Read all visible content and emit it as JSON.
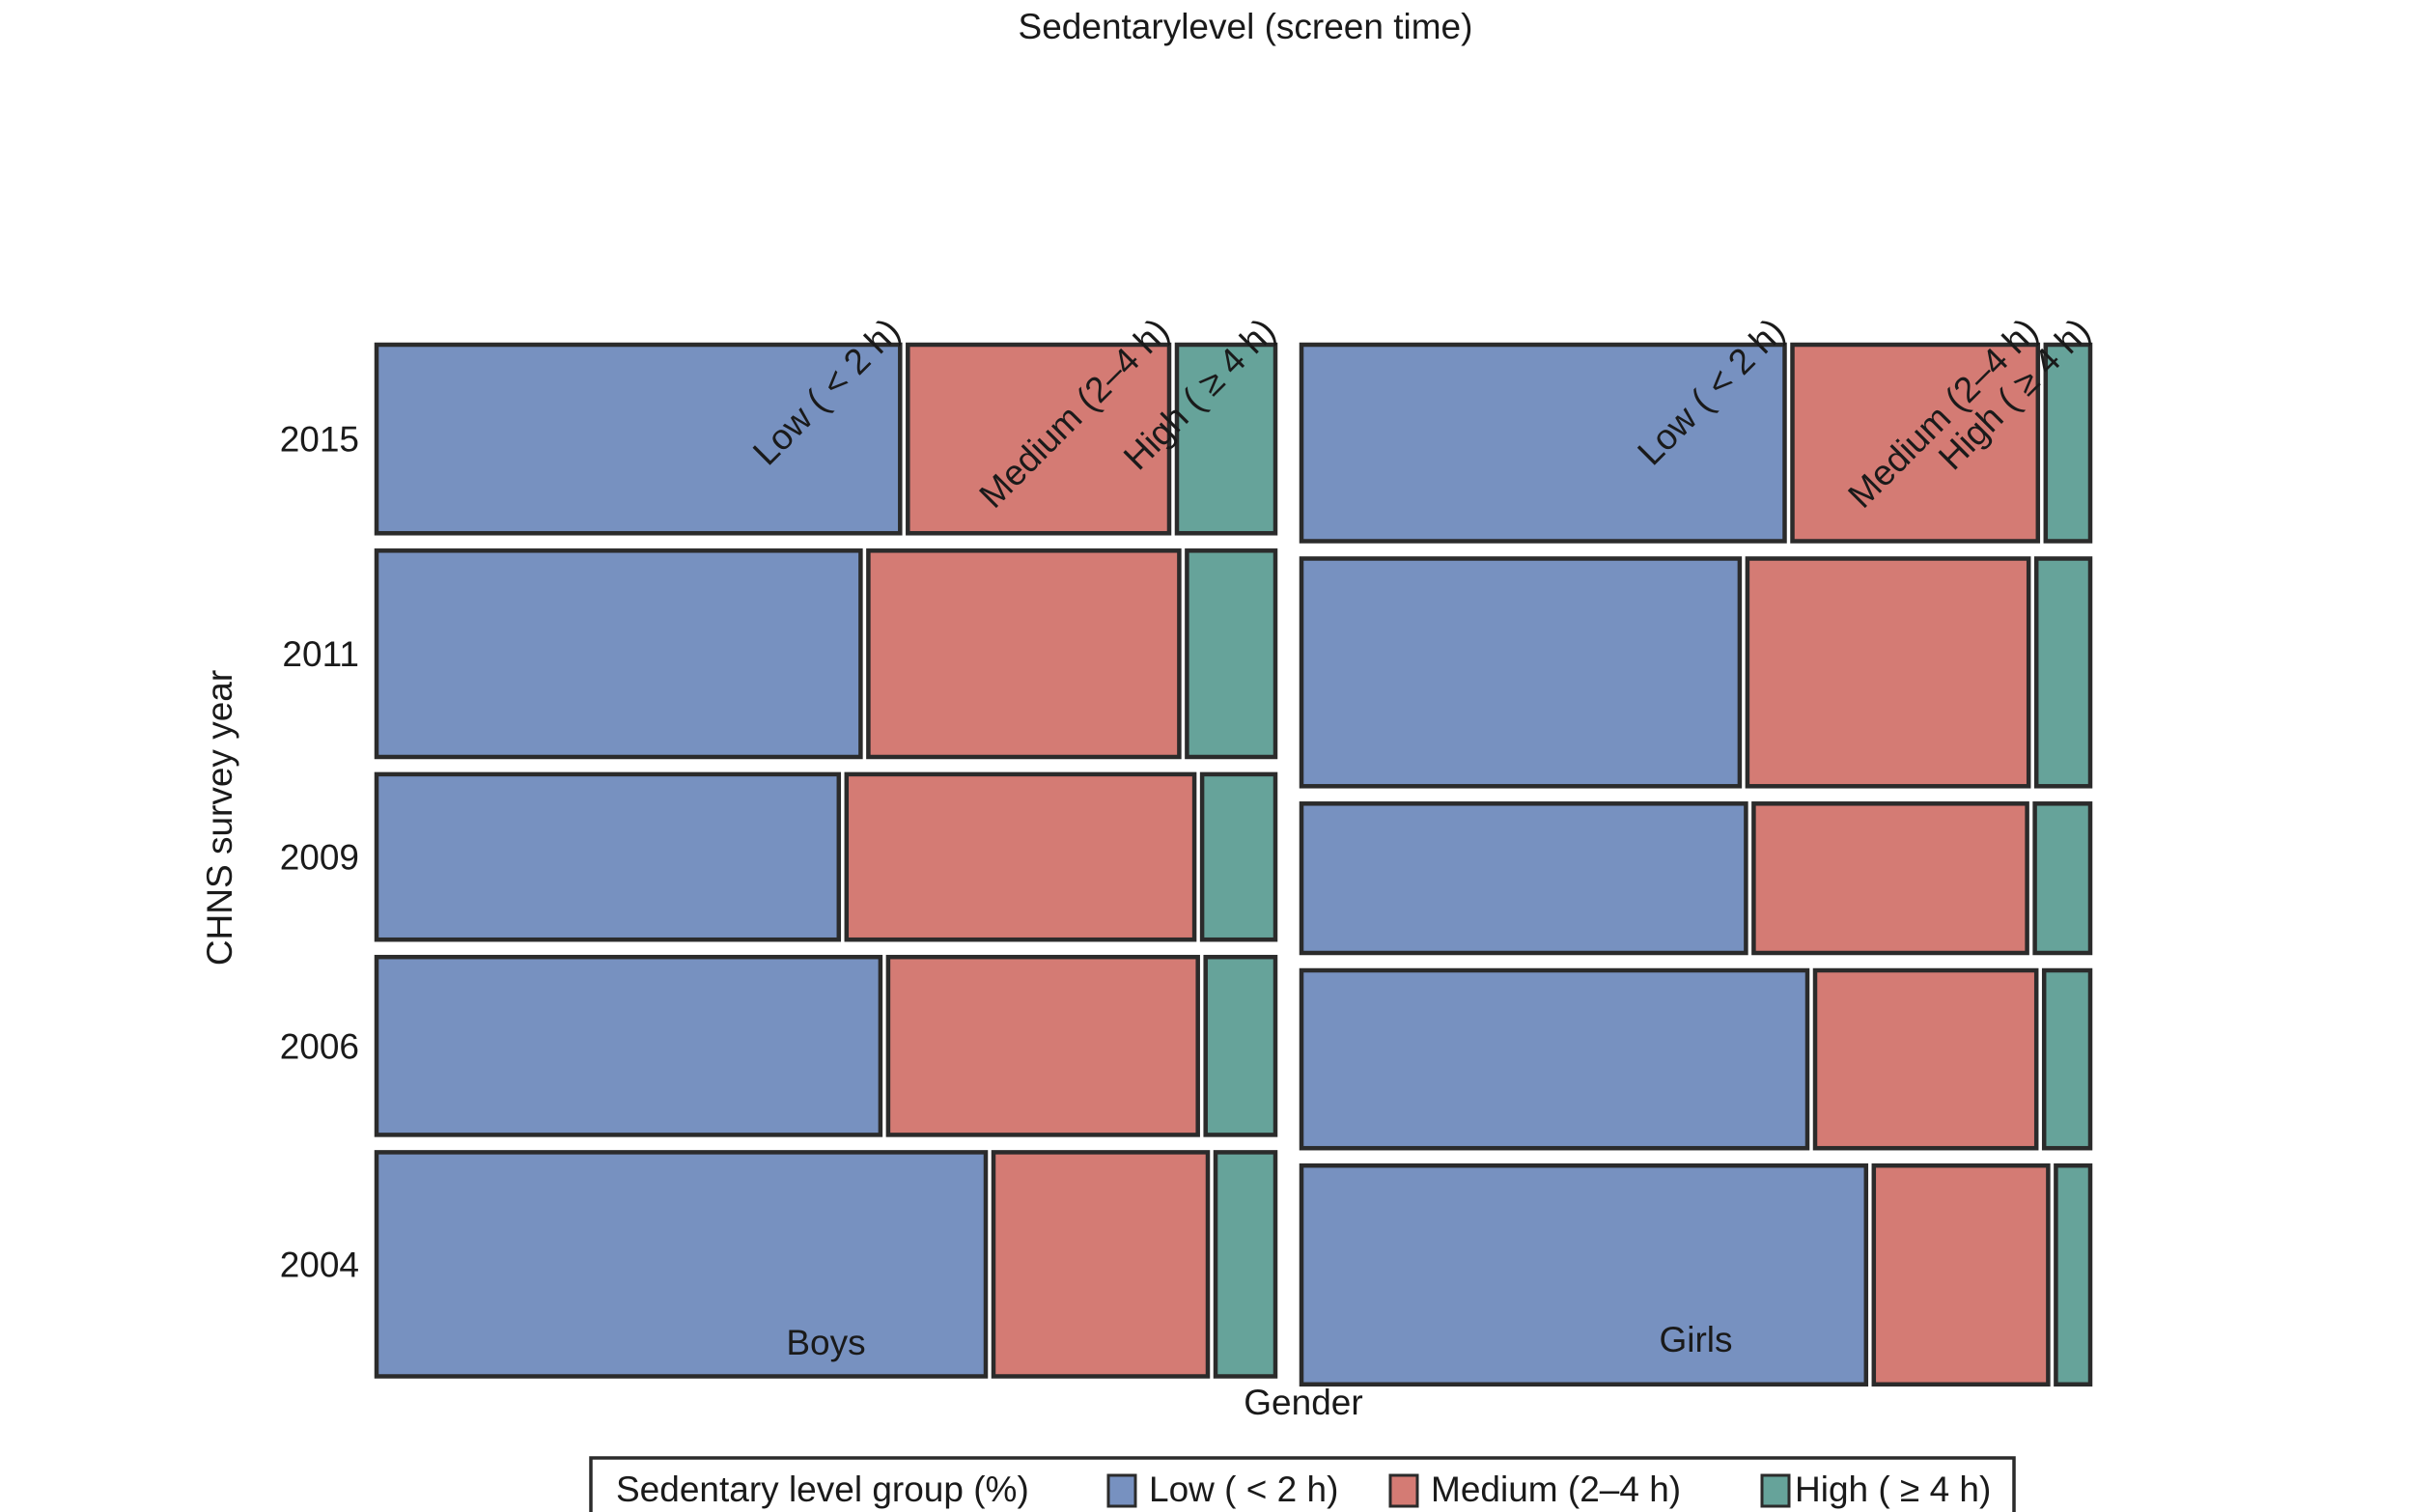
{
  "chart_data": {
    "type": "mosaic",
    "title": "Sedentarylevel (screen time)",
    "xlabel": "Gender",
    "ylabel": "CHNS survey year",
    "genders": [
      "Boys",
      "Girls"
    ],
    "years": [
      "2015",
      "2011",
      "2009",
      "2006",
      "2004"
    ],
    "levels": [
      "Low ( < 2 h)",
      "Medium (2–4 h)",
      "High ( ≥ 4 h)"
    ],
    "colors": {
      "Low ( < 2 h)": "#7791c0",
      "Medium (2–4 h)": "#d47b74",
      "High ( ≥ 4 h)": "#66a39a"
    },
    "legend": {
      "title": "Sedentary level group (%)",
      "position": "bottom",
      "items": [
        "Low ( < 2 h)",
        "Medium (2–4 h)",
        "High ( ≥ 4 h)"
      ]
    },
    "row_share_by_gender": {
      "Boys": {
        "2015": 0.212,
        "2011": 0.232,
        "2009": 0.186,
        "2006": 0.2,
        "2004": 0.252
      },
      "Girls": {
        "2015": 0.221,
        "2011": 0.256,
        "2009": 0.168,
        "2006": 0.2,
        "2004": 0.246
      }
    },
    "percentages": {
      "Boys": {
        "2015": [
          58.5,
          29.2,
          11.0
        ],
        "2011": [
          54.2,
          34.8,
          9.9
        ],
        "2009": [
          51.7,
          38.9,
          8.2
        ],
        "2006": [
          56.3,
          34.6,
          7.8
        ],
        "2004": [
          68.2,
          24.0,
          6.7
        ]
      },
      "Girls": {
        "2015": [
          61.8,
          31.4,
          5.7
        ],
        "2011": [
          56.1,
          36.0,
          6.9
        ],
        "2009": [
          56.9,
          35.0,
          7.1
        ],
        "2006": [
          64.7,
          28.3,
          5.9
        ],
        "2004": [
          72.2,
          22.3,
          4.4
        ]
      }
    }
  }
}
